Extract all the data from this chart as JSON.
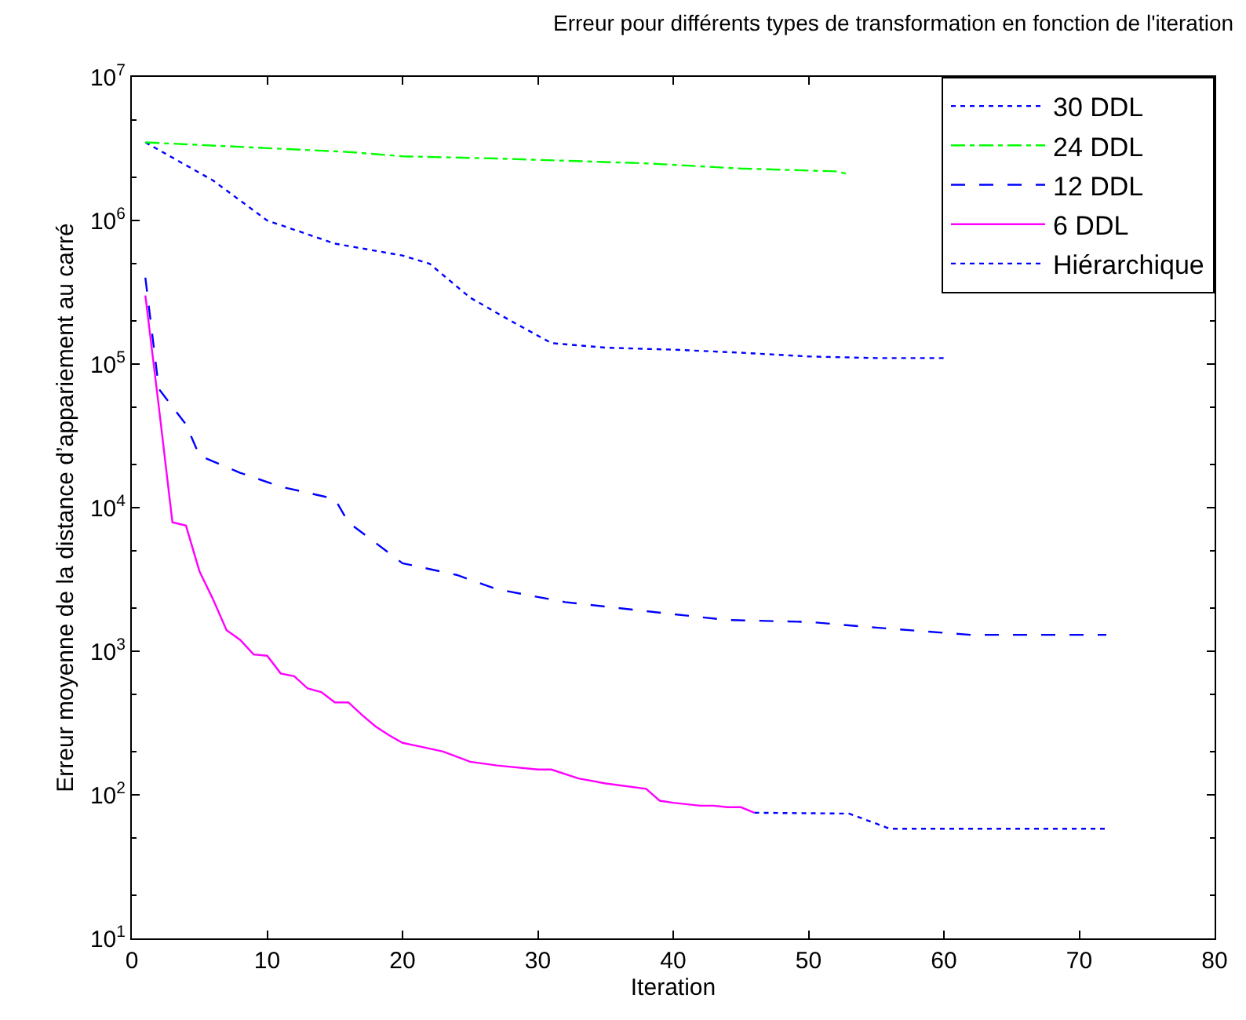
{
  "chart_data": {
    "type": "line",
    "title": "Erreur pour différents types de transformation en fonction de l'iteration",
    "xlabel": "Iteration",
    "ylabel": "Erreur moyenne de la distance d’appariement au carré",
    "log": "y",
    "xlim": [
      0,
      80
    ],
    "xticks": [
      0,
      10,
      20,
      30,
      40,
      50,
      60,
      70,
      80
    ],
    "ylim": [
      10,
      10000000
    ],
    "yticks": [
      {
        "value": 10,
        "label": "10$^{1}$"
      },
      {
        "value": 100,
        "label": "10$^{2}$"
      },
      {
        "value": 1000,
        "label": "10$^{3}$"
      },
      {
        "value": 10000,
        "label": "10$^{4}$"
      },
      {
        "value": 100000,
        "label": "10$^{5}$"
      },
      {
        "value": 1000000,
        "label": "10$^{6}$"
      },
      {
        "value": 10000000,
        "label": "10$^{7}$"
      }
    ],
    "legend": "top right",
    "marker": "none",
    "series": [
      {
        "name": "30 DDL",
        "color": "#0000ff",
        "line_style": "dotted",
        "x": [
          1,
          6,
          10,
          15,
          20,
          22,
          25,
          28,
          31,
          35,
          40,
          45,
          50,
          55,
          60
        ],
        "values": [
          3500000,
          1900000,
          1000000,
          690000,
          570000,
          500000,
          290000,
          200000,
          140000,
          130000,
          126000,
          120000,
          113000,
          110000,
          110000
        ]
      },
      {
        "name": "24 DDL",
        "color": "#00ff00",
        "line_style": "dashdot",
        "x": [
          1,
          16,
          20,
          27,
          38,
          45,
          52,
          53
        ],
        "values": [
          3500000,
          3000000,
          2800000,
          2700000,
          2500000,
          2300000,
          2200000,
          2100000
        ]
      },
      {
        "name": "12 DDL",
        "color": "#0000ff",
        "line_style": "dashed",
        "x": [
          1,
          2,
          4,
          5,
          8,
          11,
          15,
          16,
          20,
          24,
          27,
          32,
          38,
          44,
          50,
          55,
          62,
          72
        ],
        "values": [
          400000,
          67000,
          38000,
          23000,
          17500,
          14000,
          11500,
          7900,
          4100,
          3400,
          2700,
          2200,
          1900,
          1650,
          1600,
          1460,
          1300,
          1300
        ]
      },
      {
        "name": "6 DDL",
        "color": "#ff00ff",
        "line_style": "solid",
        "x": [
          1,
          2,
          3,
          4,
          5,
          6,
          7,
          8,
          9,
          10,
          11,
          12,
          13,
          14,
          15,
          16,
          17,
          18,
          19,
          20,
          21,
          23,
          25,
          27,
          30,
          31,
          33,
          35,
          38,
          39,
          40,
          42,
          43,
          44,
          45,
          46
        ],
        "values": [
          300000,
          50000,
          7900,
          7500,
          3600,
          2300,
          1400,
          1200,
          950,
          930,
          700,
          670,
          550,
          520,
          440,
          440,
          360,
          300,
          260,
          230,
          220,
          200,
          170,
          160,
          150,
          150,
          130,
          120,
          110,
          91,
          88,
          84,
          84,
          82,
          82,
          75
        ]
      },
      {
        "name": "Hiérarchique",
        "color": "#0000ff",
        "line_style": "dotted",
        "x": [
          46,
          53,
          55,
          56,
          72
        ],
        "values": [
          75,
          74,
          63,
          58,
          58
        ]
      }
    ]
  }
}
